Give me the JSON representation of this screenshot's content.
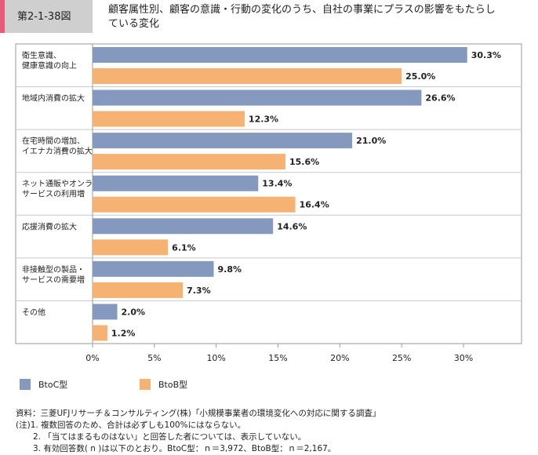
{
  "header": {
    "figure_number": "第2-1-38図",
    "title_line1": "顧客属性別、顧客の意識・行動の変化のうち、自社の事業にプラスの影響をもたらし",
    "title_line2": "ている変化"
  },
  "colors": {
    "btoc": "#8499bd",
    "btob": "#f5b273",
    "accent": "#e85a7a"
  },
  "chart_data": {
    "type": "bar",
    "orientation": "horizontal",
    "categories": [
      [
        "衛生意識、",
        "健康意識の向上"
      ],
      [
        "地域内消費の拡大"
      ],
      [
        "在宅時間の増加、",
        "イエナカ消費の拡大"
      ],
      [
        "ネット通販やオンライン",
        "サービスの利用増"
      ],
      [
        "応援消費の拡大"
      ],
      [
        "非接触型の製品・",
        "サービスの需要増"
      ],
      [
        "その他"
      ]
    ],
    "series": [
      {
        "name": "BtoC型",
        "values": [
          30.3,
          26.6,
          21.0,
          13.4,
          14.6,
          9.8,
          2.0
        ]
      },
      {
        "name": "BtoB型",
        "values": [
          25.0,
          12.3,
          15.6,
          16.4,
          6.1,
          7.3,
          1.2
        ]
      }
    ],
    "value_labels": [
      [
        "30.3%",
        "26.6%",
        "21.0%",
        "13.4%",
        "14.6%",
        "9.8%",
        "2.0%"
      ],
      [
        "25.0%",
        "12.3%",
        "15.6%",
        "16.4%",
        "6.1%",
        "7.3%",
        "1.2%"
      ]
    ],
    "xlim": [
      0,
      34
    ],
    "xticks": [
      0,
      5,
      10,
      15,
      20,
      25,
      30
    ],
    "xtick_labels": [
      "0%",
      "5%",
      "10%",
      "15%",
      "20%",
      "25%",
      "30%"
    ],
    "legend_placement": "bottom-left"
  },
  "notes": [
    "資料：三菱UFJリサーチ＆コンサルティング(株)「小規模事業者の環境変化への対応に関する調査」",
    "(注)1.  複数回答のため、合計は必ずしも100%にはならない。",
    "2.  「当てはまるものはない」と回答した者については、表示していない。",
    "3.  有効回答数( n )は以下のとおり。BtoC型：ｎ＝3,972、BtoB型：ｎ＝2,167。"
  ]
}
